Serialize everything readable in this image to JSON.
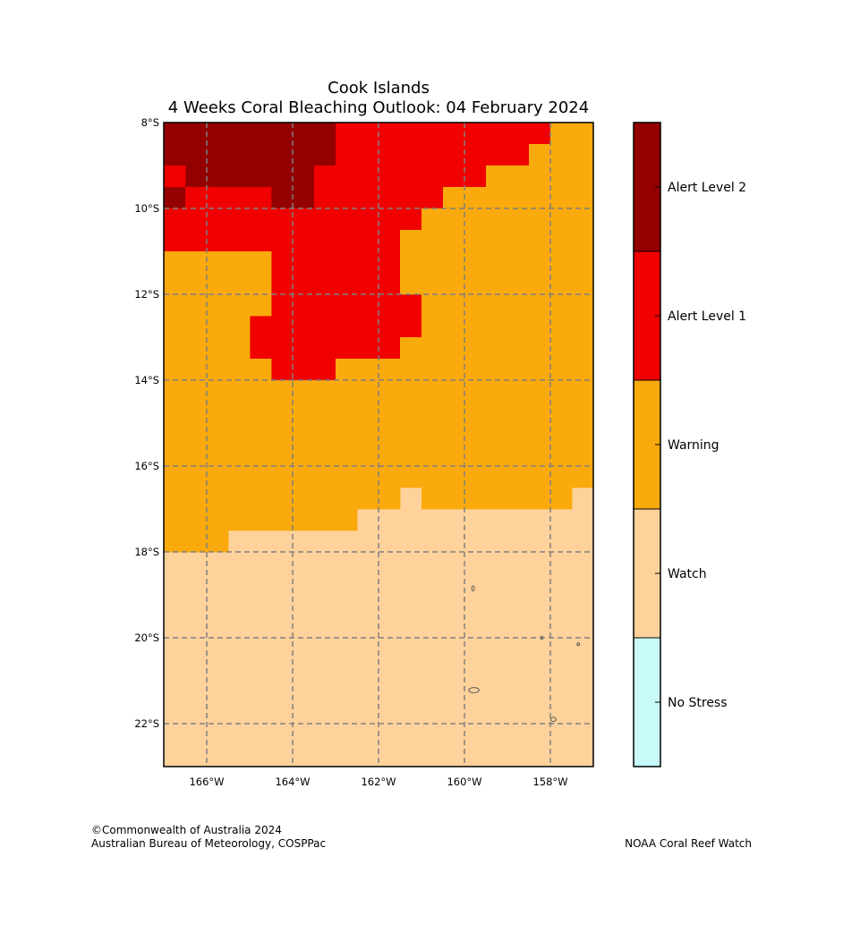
{
  "title": {
    "line1": "Cook Islands",
    "line2": "4 Weeks Coral Bleaching Outlook: 04 February 2024"
  },
  "map": {
    "lon_range": [
      -167,
      -157
    ],
    "lat_range": [
      -23,
      -8
    ],
    "cell_size_deg": 0.5,
    "background_category": "Watch",
    "regions": [
      {
        "category": "Alert Level 2",
        "lon": [
          -167,
          -163.0
        ],
        "lat": [
          -9.0,
          -8.0
        ]
      },
      {
        "category": "Alert Level 2",
        "lon": [
          -166.5,
          -163.5
        ],
        "lat": [
          -9.5,
          -9.0
        ]
      },
      {
        "category": "Alert Level 2",
        "lon": [
          -164.5,
          -163.5
        ],
        "lat": [
          -10.0,
          -9.5
        ]
      },
      {
        "category": "Alert Level 2",
        "lon": [
          -167,
          -166.5
        ],
        "lat": [
          -10.0,
          -9.5
        ]
      },
      {
        "category": "Alert Level 1",
        "lon": [
          -163.0,
          -158.0
        ],
        "lat": [
          -8.5,
          -8.0
        ]
      },
      {
        "category": "Alert Level 1",
        "lon": [
          -163.0,
          -158.5
        ],
        "lat": [
          -9.0,
          -8.5
        ]
      },
      {
        "category": "Alert Level 1",
        "lon": [
          -167,
          -166.5
        ],
        "lat": [
          -9.5,
          -9.0
        ]
      },
      {
        "category": "Alert Level 1",
        "lon": [
          -163.5,
          -159.5
        ],
        "lat": [
          -9.5,
          -9.0
        ]
      },
      {
        "category": "Alert Level 1",
        "lon": [
          -166.5,
          -164.5
        ],
        "lat": [
          -10.0,
          -9.5
        ]
      },
      {
        "category": "Alert Level 1",
        "lon": [
          -163.5,
          -160.5
        ],
        "lat": [
          -10.0,
          -9.5
        ]
      },
      {
        "category": "Alert Level 1",
        "lon": [
          -167,
          -161.0
        ],
        "lat": [
          -10.5,
          -10.0
        ]
      },
      {
        "category": "Alert Level 1",
        "lon": [
          -167,
          -161.5
        ],
        "lat": [
          -11.0,
          -10.5
        ]
      },
      {
        "category": "Alert Level 1",
        "lon": [
          -164.5,
          -161.5
        ],
        "lat": [
          -12.0,
          -11.0
        ]
      },
      {
        "category": "Alert Level 1",
        "lon": [
          -164.5,
          -161.0
        ],
        "lat": [
          -12.5,
          -12.0
        ]
      },
      {
        "category": "Alert Level 1",
        "lon": [
          -165.0,
          -161.0
        ],
        "lat": [
          -13.0,
          -12.5
        ]
      },
      {
        "category": "Alert Level 1",
        "lon": [
          -165.0,
          -161.5
        ],
        "lat": [
          -13.5,
          -13.0
        ]
      },
      {
        "category": "Alert Level 1",
        "lon": [
          -164.5,
          -163.0
        ],
        "lat": [
          -14.0,
          -13.5
        ]
      },
      {
        "category": "Warning",
        "lon": [
          -158.0,
          -157
        ],
        "lat": [
          -8.5,
          -8.0
        ]
      },
      {
        "category": "Warning",
        "lon": [
          -158.5,
          -157
        ],
        "lat": [
          -9.0,
          -8.5
        ]
      },
      {
        "category": "Warning",
        "lon": [
          -159.5,
          -157
        ],
        "lat": [
          -9.5,
          -9.0
        ]
      },
      {
        "category": "Warning",
        "lon": [
          -160.5,
          -157
        ],
        "lat": [
          -10.0,
          -9.5
        ]
      },
      {
        "category": "Warning",
        "lon": [
          -161.0,
          -157
        ],
        "lat": [
          -10.5,
          -10.0
        ]
      },
      {
        "category": "Warning",
        "lon": [
          -161.5,
          -157
        ],
        "lat": [
          -11.0,
          -10.5
        ]
      },
      {
        "category": "Warning",
        "lon": [
          -167,
          -164.5
        ],
        "lat": [
          -12.0,
          -11.0
        ]
      },
      {
        "category": "Warning",
        "lon": [
          -161.5,
          -157
        ],
        "lat": [
          -12.0,
          -11.0
        ]
      },
      {
        "category": "Warning",
        "lon": [
          -167,
          -164.5
        ],
        "lat": [
          -12.5,
          -12.0
        ]
      },
      {
        "category": "Warning",
        "lon": [
          -161.0,
          -157
        ],
        "lat": [
          -12.5,
          -12.0
        ]
      },
      {
        "category": "Warning",
        "lon": [
          -167,
          -165.0
        ],
        "lat": [
          -13.0,
          -12.5
        ]
      },
      {
        "category": "Warning",
        "lon": [
          -161.0,
          -157
        ],
        "lat": [
          -13.0,
          -12.5
        ]
      },
      {
        "category": "Warning",
        "lon": [
          -167,
          -165.0
        ],
        "lat": [
          -13.5,
          -13.0
        ]
      },
      {
        "category": "Warning",
        "lon": [
          -161.5,
          -157
        ],
        "lat": [
          -13.5,
          -13.0
        ]
      },
      {
        "category": "Warning",
        "lon": [
          -167,
          -164.5
        ],
        "lat": [
          -14.0,
          -13.5
        ]
      },
      {
        "category": "Warning",
        "lon": [
          -163.0,
          -157
        ],
        "lat": [
          -14.0,
          -13.5
        ]
      },
      {
        "category": "Warning",
        "lon": [
          -167,
          -157
        ],
        "lat": [
          -16.5,
          -14.0
        ]
      },
      {
        "category": "Warning",
        "lon": [
          -167,
          -161.5
        ],
        "lat": [
          -17.0,
          -16.5
        ]
      },
      {
        "category": "Warning",
        "lon": [
          -161.0,
          -157.5
        ],
        "lat": [
          -17.0,
          -16.5
        ]
      },
      {
        "category": "Warning",
        "lon": [
          -167,
          -162.5
        ],
        "lat": [
          -17.5,
          -17.0
        ]
      },
      {
        "category": "Warning",
        "lon": [
          -167,
          -165.5
        ],
        "lat": [
          -18.0,
          -17.5
        ]
      }
    ],
    "islands": [
      {
        "lon": -159.8,
        "lat": -18.85,
        "rx": 0.03,
        "ry": 0.06
      },
      {
        "lon": -158.2,
        "lat": -20.0,
        "rx": 0.03,
        "ry": 0.03
      },
      {
        "lon": -157.35,
        "lat": -20.15,
        "rx": 0.03,
        "ry": 0.03
      },
      {
        "lon": -159.78,
        "lat": -21.22,
        "rx": 0.12,
        "ry": 0.06
      },
      {
        "lon": -157.93,
        "lat": -21.9,
        "rx": 0.06,
        "ry": 0.05
      }
    ],
    "x_ticks": [
      {
        "value": -166,
        "label": "166°W"
      },
      {
        "value": -164,
        "label": "164°W"
      },
      {
        "value": -162,
        "label": "162°W"
      },
      {
        "value": -160,
        "label": "160°W"
      },
      {
        "value": -158,
        "label": "158°W"
      }
    ],
    "y_ticks": [
      {
        "value": -8,
        "label": "8°S"
      },
      {
        "value": -10,
        "label": "10°S"
      },
      {
        "value": -12,
        "label": "12°S"
      },
      {
        "value": -14,
        "label": "14°S"
      },
      {
        "value": -16,
        "label": "16°S"
      },
      {
        "value": -18,
        "label": "18°S"
      },
      {
        "value": -20,
        "label": "20°S"
      },
      {
        "value": -22,
        "label": "22°S"
      }
    ]
  },
  "legend": {
    "categories": [
      {
        "label": "Alert Level 2",
        "color": "#940000"
      },
      {
        "label": "Alert Level 1",
        "color": "#F00000"
      },
      {
        "label": "Warning",
        "color": "#FAAA0C"
      },
      {
        "label": "Watch",
        "color": "#FFD29B"
      },
      {
        "label": "No Stress",
        "color": "#C8FAFA"
      }
    ]
  },
  "colors": {
    "grid": "#808080",
    "island": "#555555",
    "frame": "#000000"
  },
  "credits": {
    "left_line1": "©Commonwealth of Australia 2024",
    "left_line2": "Australian Bureau of Meteorology, COSPPac",
    "right": "NOAA Coral Reef Watch"
  }
}
